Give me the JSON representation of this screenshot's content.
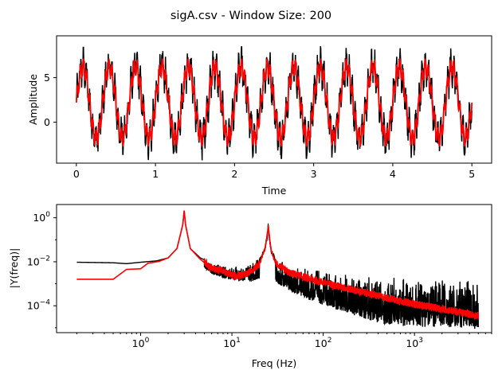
{
  "figure": {
    "title": "sigA.csv - Window Size: 200"
  },
  "colors": {
    "raw": "#000000",
    "smoothed": "#ff0000"
  },
  "chart_data": [
    {
      "type": "line",
      "panel": "top",
      "xlabel": "Time",
      "ylabel": "Amplitude",
      "xlim": [
        -0.25,
        5.25
      ],
      "ylim": [
        -4.6,
        9.7
      ],
      "xticks": [
        0,
        1,
        2,
        3,
        4,
        5
      ],
      "yticks": [
        0,
        5
      ],
      "grid": false,
      "signal": {
        "sine_freq_hz": 3,
        "sine_amplitude": 4,
        "offset": 2.2,
        "ripple_freq_hz": 25,
        "ripple_amplitude": 1.2,
        "noise_amplitude": 1.4,
        "t_start": 0,
        "t_end": 5
      },
      "series": [
        {
          "color": "#000000"
        },
        {
          "color": "#ff0000"
        }
      ]
    },
    {
      "type": "line",
      "panel": "bottom",
      "xlabel": "Freq (Hz)",
      "ylabel": "|Y(freq)|",
      "xscale": "log",
      "yscale": "log",
      "xlim": [
        0.12,
        7000
      ],
      "ylim": [
        6e-06,
        4
      ],
      "xtick_exponents": [
        0,
        1,
        2,
        3
      ],
      "ytick_exponents": [
        -4,
        -2,
        0
      ],
      "grid": false,
      "series": [
        {
          "color": "#000000",
          "points": [
            [
              0.2,
              0.0095
            ],
            [
              0.5,
              0.009
            ],
            [
              0.7,
              0.0082
            ],
            [
              1.0,
              0.0095
            ],
            [
              1.5,
              0.011
            ],
            [
              2.0,
              0.015
            ],
            [
              2.5,
              0.04
            ],
            [
              2.9,
              0.5
            ],
            [
              3.0,
              2.2
            ],
            [
              3.1,
              0.5
            ],
            [
              3.5,
              0.04
            ],
            [
              4.5,
              0.015
            ],
            [
              6,
              0.0085
            ],
            [
              8,
              0.0068
            ],
            [
              11,
              0.0068
            ],
            [
              16,
              0.0088
            ],
            [
              20,
              0.015
            ],
            [
              23,
              0.05
            ],
            [
              24.5,
              0.2
            ],
            [
              25,
              0.6
            ],
            [
              25.5,
              0.2
            ],
            [
              27,
              0.04
            ],
            [
              30,
              0.016
            ],
            [
              40,
              0.008
            ],
            [
              70,
              0.005
            ],
            [
              150,
              0.0032
            ],
            [
              400,
              0.0022
            ],
            [
              1000,
              0.0018
            ],
            [
              2500,
              0.0016
            ],
            [
              5000,
              0.0015
            ]
          ]
        },
        {
          "color": "#ff0000",
          "points": [
            [
              0.2,
              0.0016
            ],
            [
              0.5,
              0.0016
            ],
            [
              0.7,
              0.0045
            ],
            [
              1.0,
              0.0048
            ],
            [
              1.2,
              0.0085
            ],
            [
              1.6,
              0.0105
            ],
            [
              2.0,
              0.015
            ],
            [
              2.5,
              0.04
            ],
            [
              2.9,
              0.5
            ],
            [
              3.0,
              2.2
            ],
            [
              3.1,
              0.5
            ],
            [
              3.5,
              0.04
            ],
            [
              4.5,
              0.013
            ],
            [
              6,
              0.005
            ],
            [
              8,
              0.0038
            ],
            [
              11,
              0.0022
            ],
            [
              15,
              0.003
            ],
            [
              20,
              0.008
            ],
            [
              23,
              0.04
            ],
            [
              24.5,
              0.2
            ],
            [
              25,
              0.5
            ],
            [
              25.5,
              0.2
            ],
            [
              27,
              0.03
            ],
            [
              30,
              0.009
            ],
            [
              40,
              0.0035
            ],
            [
              70,
              0.0017
            ],
            [
              150,
              0.00075
            ],
            [
              400,
              0.00028
            ],
            [
              1000,
              0.00012
            ],
            [
              2500,
              6e-05
            ],
            [
              5000,
              3.5e-05
            ]
          ]
        }
      ]
    }
  ]
}
